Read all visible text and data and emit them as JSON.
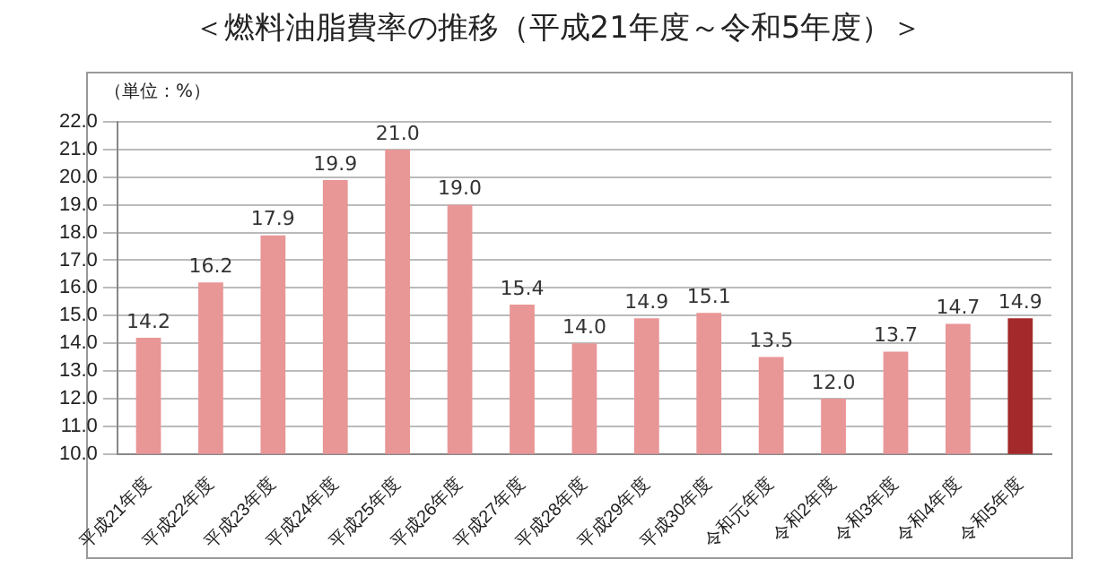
{
  "chart_data": {
    "type": "bar",
    "title": "＜燃料油脂費率の推移（平成21年度～令和5年度）＞",
    "ylabel": "（単位：%）",
    "categories": [
      "平成21年度",
      "平成22年度",
      "平成23年度",
      "平成24年度",
      "平成25年度",
      "平成26年度",
      "平成27年度",
      "平成28年度",
      "平成29年度",
      "平成30年度",
      "令和元年度",
      "令和2年度",
      "令和3年度",
      "令和4年度",
      "令和5年度"
    ],
    "values": [
      14.2,
      16.2,
      17.9,
      19.9,
      21.0,
      19.0,
      15.4,
      14.0,
      14.9,
      15.1,
      13.5,
      12.0,
      13.7,
      14.7,
      14.9
    ],
    "colors": [
      "#e99696",
      "#e99696",
      "#e99696",
      "#e99696",
      "#e99696",
      "#e99696",
      "#e99696",
      "#e99696",
      "#e99696",
      "#e99696",
      "#e99696",
      "#e99696",
      "#e99696",
      "#e99696",
      "#a3292b"
    ],
    "value_labels": [
      "14.2",
      "16.2",
      "17.9",
      "19.9",
      "21.0",
      "19.0",
      "15.4",
      "14.0",
      "14.9",
      "15.1",
      "13.5",
      "12.0",
      "13.7",
      "14.7",
      "14.9"
    ],
    "ylim": [
      10,
      22
    ],
    "yticks": [
      {
        "value": 10,
        "label": "10.0"
      },
      {
        "value": 11,
        "label": "11.0"
      },
      {
        "value": 12,
        "label": "12.0"
      },
      {
        "value": 13,
        "label": "13.0"
      },
      {
        "value": 14,
        "label": "14.0"
      },
      {
        "value": 15,
        "label": "15.0"
      },
      {
        "value": 16,
        "label": "16.0"
      },
      {
        "value": 17,
        "label": "17.0"
      },
      {
        "value": 18,
        "label": "18.0"
      },
      {
        "value": 19,
        "label": "19.0"
      },
      {
        "value": 20,
        "label": "20.0"
      },
      {
        "value": 21,
        "label": "21.0"
      },
      {
        "value": 22,
        "label": "22.0"
      }
    ],
    "grid": "y",
    "legend": false
  }
}
